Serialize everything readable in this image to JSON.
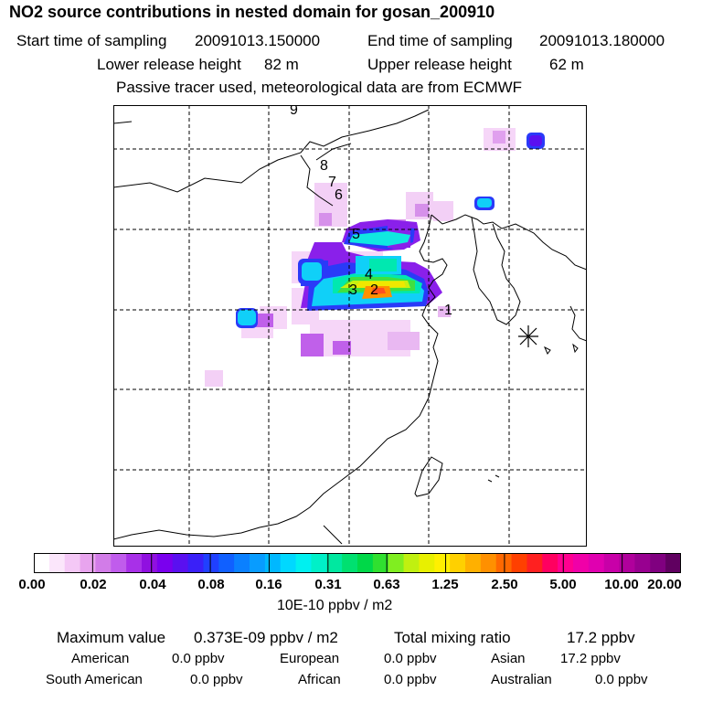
{
  "header": {
    "title": "NO2 source contributions in nested domain for gosan_200910",
    "start_label": "Start time of sampling",
    "start_value": "20091013.150000",
    "end_label": "End time of sampling",
    "end_value": "20091013.180000",
    "lower_label": "Lower release height",
    "lower_value": "82 m",
    "upper_label": "Upper release height",
    "upper_value": "62 m",
    "note": "Passive tracer used, meteorological data are from ECMWF"
  },
  "map": {
    "trajectory_labels": [
      "1",
      "2",
      "3",
      "4",
      "5",
      "6",
      "7",
      "8",
      "9"
    ],
    "receptor_marker": "asterisk"
  },
  "colorbar": {
    "ticks": [
      "0.00",
      "0.02",
      "0.04",
      "0.08",
      "0.16",
      "0.31",
      "0.63",
      "1.25",
      "2.50",
      "5.00",
      "10.00",
      "20.00"
    ],
    "colors": [
      "#ffffff",
      "#fbe6fb",
      "#f4c8f6",
      "#e8a4ee",
      "#d27ce8",
      "#c05cec",
      "#a830e8",
      "#9010e0",
      "#7a00ee",
      "#5a10f0",
      "#3a20f8",
      "#2040ff",
      "#1060ff",
      "#0a80ff",
      "#089cff",
      "#00b8ff",
      "#00d8ff",
      "#00f0f0",
      "#00f0c8",
      "#00e8a0",
      "#00e070",
      "#00d848",
      "#30e030",
      "#80ee20",
      "#c0f010",
      "#e8f000",
      "#fff000",
      "#ffd000",
      "#ffb000",
      "#ff9000",
      "#ff6800",
      "#ff4000",
      "#ff2020",
      "#ff0060",
      "#ff0090",
      "#f000a8",
      "#e000b0",
      "#c800a8",
      "#b0009c",
      "#980090",
      "#800080",
      "#600060"
    ],
    "units": "10E-10 ppbv / m2"
  },
  "stats": {
    "max_label": "Maximum value",
    "max_value": "0.373E-09 ppbv / m2",
    "total_label": "Total mixing ratio",
    "total_value": "17.2 ppbv",
    "regions": [
      {
        "name": "American",
        "value": "0.0 ppbv"
      },
      {
        "name": "European",
        "value": "0.0 ppbv"
      },
      {
        "name": "Asian",
        "value": "17.2 ppbv"
      },
      {
        "name": "South American",
        "value": "0.0 ppbv"
      },
      {
        "name": "African",
        "value": "0.0 ppbv"
      },
      {
        "name": "Australian",
        "value": "0.0 ppbv"
      }
    ]
  }
}
